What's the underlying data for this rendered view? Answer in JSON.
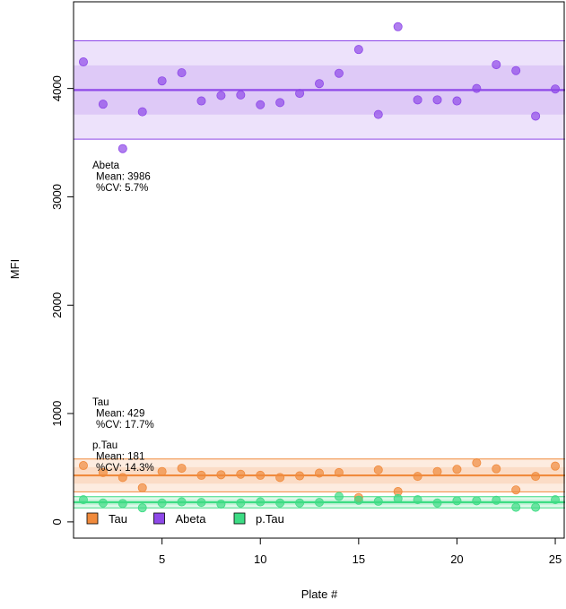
{
  "chart_data": {
    "type": "scatter",
    "title": "",
    "xlabel": "Plate #",
    "ylabel": "MFI",
    "xlim": [
      0.5,
      25.5
    ],
    "ylim": [
      -150,
      4800
    ],
    "x_ticks": [
      5,
      10,
      15,
      20,
      25
    ],
    "y_ticks": [
      0,
      1000,
      2000,
      3000,
      4000
    ],
    "grid": false,
    "legend_position": "bottom-left",
    "series": [
      {
        "name": "Tau",
        "color": "#f08a3c",
        "x": [
          1,
          2,
          3,
          4,
          5,
          6,
          7,
          8,
          9,
          10,
          11,
          12,
          13,
          14,
          15,
          16,
          17,
          18,
          19,
          20,
          21,
          22,
          23,
          24,
          25
        ],
        "values": [
          520,
          455,
          410,
          315,
          465,
          495,
          430,
          435,
          440,
          430,
          410,
          425,
          450,
          455,
          225,
          480,
          280,
          420,
          465,
          485,
          545,
          490,
          295,
          420,
          515
        ],
        "mean_line": 429,
        "band_1sd": [
          353,
          505
        ],
        "band_2sd": [
          277,
          581
        ],
        "annotation": [
          "Tau",
          "Mean:  429",
          "%CV:  17.7%"
        ]
      },
      {
        "name": "Abeta",
        "color": "#8e49e8",
        "x": [
          1,
          2,
          3,
          4,
          5,
          6,
          7,
          8,
          9,
          10,
          11,
          12,
          13,
          14,
          15,
          16,
          17,
          18,
          19,
          20,
          21,
          22,
          23,
          24,
          25
        ],
        "values": [
          4245,
          3855,
          3445,
          3785,
          4070,
          4145,
          3885,
          3935,
          3940,
          3850,
          3870,
          3955,
          4045,
          4140,
          4360,
          3760,
          4570,
          3895,
          3895,
          3885,
          4000,
          4220,
          4165,
          3745,
          3995
        ],
        "mean_line": 3986,
        "band_1sd": [
          3759,
          4213
        ],
        "band_2sd": [
          3532,
          4440
        ],
        "annotation": [
          "Abeta",
          "Mean: 3986",
          "%CV:  5.7%"
        ]
      },
      {
        "name": "p.Tau",
        "color": "#3ddc84",
        "x": [
          1,
          2,
          3,
          4,
          5,
          6,
          7,
          8,
          9,
          10,
          11,
          12,
          13,
          14,
          15,
          16,
          17,
          18,
          19,
          20,
          21,
          22,
          23,
          24,
          25
        ],
        "values": [
          205,
          175,
          170,
          130,
          175,
          185,
          180,
          165,
          175,
          185,
          175,
          175,
          180,
          235,
          200,
          190,
          215,
          205,
          175,
          195,
          195,
          200,
          135,
          135,
          205
        ],
        "mean_line": 181,
        "band_1sd": [
          155,
          207
        ],
        "band_2sd": [
          129,
          233
        ],
        "annotation": [
          "p.Tau",
          "Mean:  181",
          "%CV:  14.3%"
        ]
      }
    ]
  }
}
